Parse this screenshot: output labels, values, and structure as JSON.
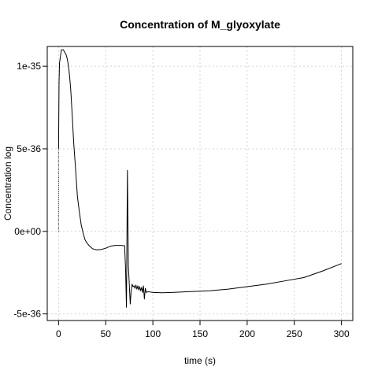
{
  "chart_data": {
    "type": "line",
    "title": "Concentration of M_glyoxylate",
    "xlabel": "time (s)",
    "ylabel": "Concentration log",
    "xlim": [
      -12,
      312
    ],
    "ylim": [
      -5.4e-36,
      1.12e-35
    ],
    "x_ticks": [
      0,
      50,
      100,
      150,
      200,
      250,
      300
    ],
    "x_tick_labels": [
      "0",
      "50",
      "100",
      "150",
      "200",
      "250",
      "300"
    ],
    "y_ticks": [
      -5e-36,
      0,
      5e-36,
      1e-35
    ],
    "y_tick_labels": [
      "-5e-36",
      "0e+00",
      "5e-36",
      "1e-35"
    ],
    "grid": true,
    "grid_style": "dotted",
    "line_color": "#000000",
    "grid_color": "#d3d3d3",
    "series": [
      {
        "x": [
          0,
          0,
          0.5,
          1,
          2,
          3,
          4,
          5,
          6,
          7,
          8,
          9,
          10,
          11,
          12,
          13,
          14,
          15,
          16,
          18,
          20,
          22,
          24,
          26,
          28,
          30,
          33,
          36,
          40,
          45,
          50,
          55,
          60,
          63,
          66,
          68,
          70,
          71,
          72,
          73,
          74,
          75,
          76,
          77,
          78,
          79,
          80,
          81,
          82,
          83,
          84,
          85,
          86,
          87,
          88,
          89,
          90,
          91,
          92,
          93,
          95,
          100,
          110,
          120,
          140,
          160,
          180,
          200,
          220,
          240,
          260,
          280,
          300
        ],
        "y": [
          0,
          5e-36,
          9e-36,
          1.02e-35,
          1.06e-35,
          1.1e-35,
          1.1e-35,
          1.1e-35,
          1.09e-35,
          1.08e-35,
          1.07e-35,
          1.05e-35,
          1.02e-35,
          9.8e-36,
          9.2e-36,
          8.5e-36,
          7.5e-36,
          6.5e-36,
          5.4e-36,
          3.8e-36,
          2.1e-36,
          1.2e-36,
          4e-37,
          -1e-37,
          -5e-37,
          -7e-37,
          -9e-37,
          -1.05e-36,
          -1.12e-36,
          -1.1e-36,
          -1.02e-36,
          -9e-37,
          -8.5e-37,
          -8.5e-37,
          -8.5e-37,
          -8.6e-37,
          -8.7e-37,
          -2.2e-36,
          -4.6e-36,
          3.7e-36,
          -2.1e-36,
          -3.2e-36,
          -4.4e-36,
          -3.6e-36,
          -3.2e-36,
          -3.35e-36,
          -3.3e-36,
          -3.45e-36,
          -3.25e-36,
          -3.5e-36,
          -3.3e-36,
          -3.55e-36,
          -3.35e-36,
          -3.6e-36,
          -3.4e-36,
          -3.7e-36,
          -3.3e-36,
          -4.1e-36,
          -3.45e-36,
          -3.7e-36,
          -3.65e-36,
          -3.7e-36,
          -3.72e-36,
          -3.7e-36,
          -3.65e-36,
          -3.6e-36,
          -3.5e-36,
          -3.35e-36,
          -3.2e-36,
          -3e-36,
          -2.8e-36,
          -2.4e-36,
          -1.95e-36
        ]
      }
    ]
  }
}
